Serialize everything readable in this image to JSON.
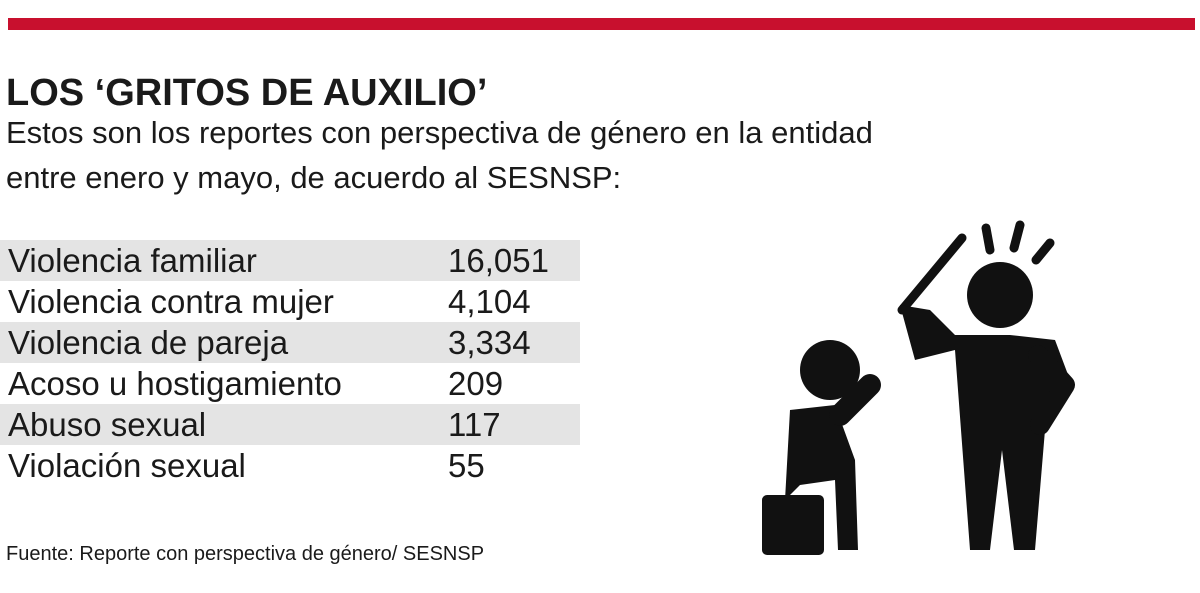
{
  "header": {
    "title": "LOS ‘GRITOS DE AUXILIO’",
    "subtitle_lines": [
      "Estos son los reportes con perspectiva de género en la entidad",
      "entre enero y mayo, de acuerdo al SESNSP:"
    ]
  },
  "table": {
    "rows": [
      [
        "Violencia familiar",
        "16,051"
      ],
      [
        "Violencia contra mujer",
        "4,104"
      ],
      [
        "Violencia de pareja",
        "3,334"
      ],
      [
        "Acoso u hostigamiento",
        "209"
      ],
      [
        "Abuso sexual",
        "117"
      ],
      [
        "Violación sexual",
        "55"
      ]
    ]
  },
  "footer": {
    "source": "Fuente: Reporte con perspectiva de género/ SESNSP"
  }
}
